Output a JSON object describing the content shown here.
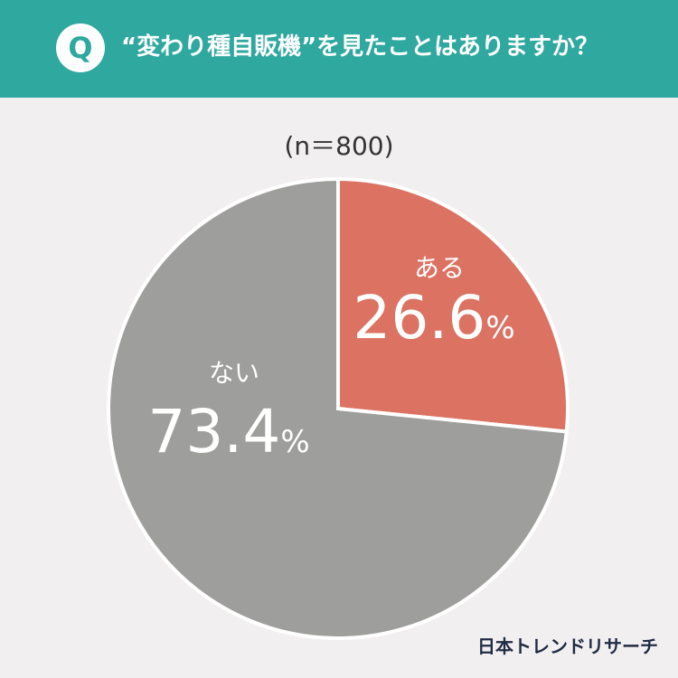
{
  "header": {
    "badge": "Q",
    "question": "“変わり種自販機”を見たことはありますか？"
  },
  "sample_size": "(n＝800)",
  "brand": "日本トレンドリサーチ",
  "colors": {
    "header_bg": "#2fa8a0",
    "yes": "#db7262",
    "no": "#9e9e9c",
    "background": "#f2eff0"
  },
  "chart_data": {
    "type": "pie",
    "categories": [
      "ある",
      "ない"
    ],
    "values": [
      26.6,
      73.4
    ],
    "value_labels": [
      "26.6%",
      "73.4%"
    ],
    "colors": [
      "#db7262",
      "#9e9e9c"
    ],
    "start_angle": "12 o'clock, clockwise"
  }
}
